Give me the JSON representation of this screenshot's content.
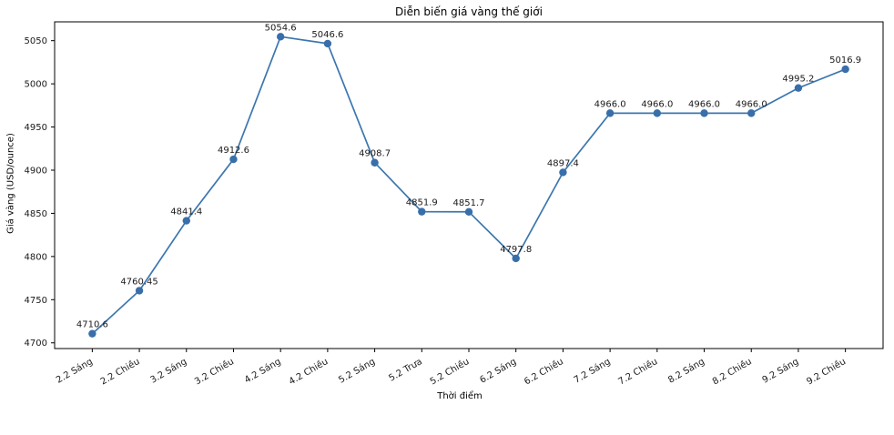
{
  "figure": {
    "title": "Diễn biến giá vàng thế giới",
    "xlabel": "Thời điểm",
    "ylabel": "Giá vàng (USD/ounce)"
  },
  "chart_data": {
    "type": "line",
    "title": "Diễn biến giá vàng thế giới",
    "xlabel": "Thời điểm",
    "ylabel": "Giá vàng (USD/ounce)",
    "categories": [
      "2.2 Sáng",
      "2.2 Chiều",
      "3.2 Sáng",
      "3.2 Chiều",
      "4.2 Sáng",
      "4.2 Chiều",
      "5.2 Sáng",
      "5.2 Trưa",
      "5.2 Chiều",
      "6.2 Sáng",
      "6.2 Chiều",
      "7.2 Sáng",
      "7.2 Chiều",
      "8.2 Sáng",
      "8.2 Chiều",
      "9.2 Sáng",
      "9.2 Chiều"
    ],
    "values": [
      4710.6,
      4760.45,
      4841.4,
      4912.6,
      5054.6,
      5046.6,
      4908.7,
      4851.9,
      4851.7,
      4797.8,
      4897.4,
      4966.0,
      4966.0,
      4966.0,
      4966.0,
      4995.2,
      5016.9
    ],
    "point_labels": [
      "4710.6",
      "4760.45",
      "4841.4",
      "4912.6",
      "5054.6",
      "5046.6",
      "4908.7",
      "4851.9",
      "4851.7",
      "4797.8",
      "4897.4",
      "4966.0",
      "4966.0",
      "4966.0",
      "4966.0",
      "4995.2",
      "5016.9"
    ],
    "yticks": [
      4700,
      4750,
      4800,
      4850,
      4900,
      4950,
      5000,
      5050
    ],
    "ylim": [
      4693.4,
      5071.8
    ],
    "grid": false,
    "legend_position": "none",
    "x_tick_rotation_deg": 30,
    "line_color": "#3b76af",
    "marker_color": "#386eaa",
    "marker": "o",
    "axis_color": "#000000",
    "label_color": "#1a1a1a",
    "background_color": "#ffffff"
  }
}
